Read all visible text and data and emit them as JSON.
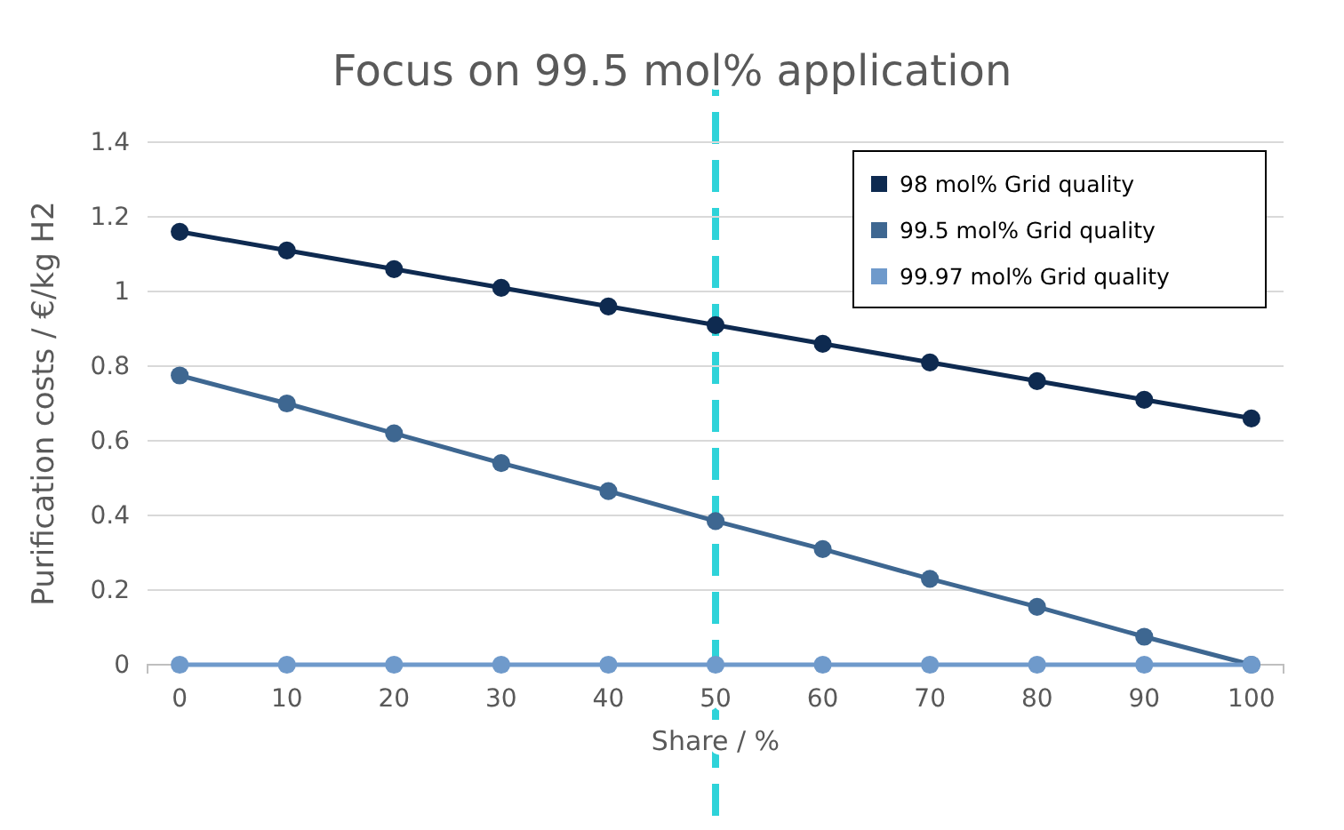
{
  "chart_data": {
    "type": "line",
    "title": "Focus on 99.5 mol% application",
    "xlabel": "Share / %",
    "ylabel": "Purification costs / €/kg H2",
    "x": [
      0,
      10,
      20,
      30,
      40,
      50,
      60,
      70,
      80,
      90,
      100
    ],
    "xlim": [
      -3,
      103
    ],
    "xticks": [
      0,
      10,
      20,
      30,
      40,
      50,
      60,
      70,
      80,
      90,
      100
    ],
    "ylim": [
      0,
      1.4
    ],
    "yticks": [
      0,
      0.2,
      0.4,
      0.6,
      0.8,
      1,
      1.2,
      1.4
    ],
    "grid": "y",
    "legend": "top right",
    "marker": "circle",
    "line_style": "solid",
    "series": [
      {
        "name": "98 mol% Grid quality",
        "color": "#0e2a50",
        "values": [
          1.16,
          1.11,
          1.06,
          1.01,
          0.96,
          0.91,
          0.86,
          0.81,
          0.76,
          0.71,
          0.66
        ]
      },
      {
        "name": "99.5 mol% Grid quality",
        "color": "#3e6791",
        "values": [
          0.775,
          0.7,
          0.62,
          0.54,
          0.465,
          0.385,
          0.31,
          0.23,
          0.155,
          0.075,
          0
        ]
      },
      {
        "name": "99.97 mol% Grid quality",
        "color": "#6f9acb",
        "values": [
          0,
          0,
          0,
          0,
          0,
          0,
          0,
          0,
          0,
          0,
          0
        ]
      }
    ],
    "ref_lines": [
      {
        "axis": "x",
        "value": 50,
        "color": "#2ed3d9",
        "line_style": "dashed"
      }
    ]
  }
}
